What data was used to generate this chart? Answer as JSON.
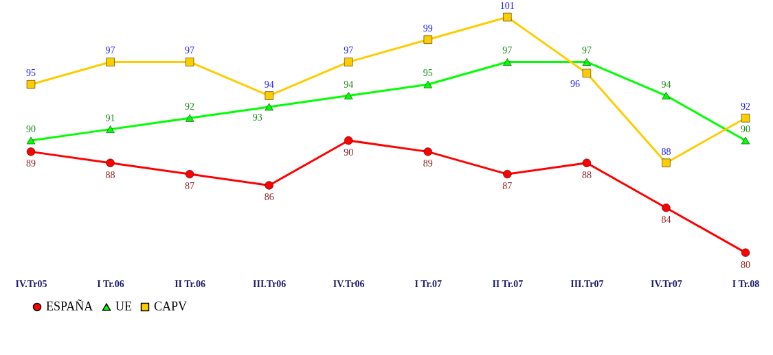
{
  "chart_data": {
    "type": "line",
    "categories": [
      "IV.Tr05",
      "I Tr.06",
      "II Tr.06",
      "III.Tr06",
      "IV.Tr06",
      "I Tr.07",
      "II Tr.07",
      "III.Tr07",
      "IV.Tr07",
      "I Tr.08"
    ],
    "series": [
      {
        "name": "ESPAÑA",
        "color": "#ff0000",
        "marker": "circle",
        "values": [
          89,
          88,
          87,
          86,
          90,
          89,
          87,
          88,
          84,
          80
        ]
      },
      {
        "name": "UE",
        "color": "#00ff00",
        "marker": "triangle",
        "values": [
          90,
          91,
          92,
          93,
          94,
          95,
          97,
          97,
          94,
          90
        ]
      },
      {
        "name": "CAPV",
        "color": "#ffcc00",
        "marker": "square",
        "values": [
          95,
          97,
          97,
          94,
          97,
          99,
          101,
          96,
          88,
          92
        ]
      }
    ],
    "data_labels": true,
    "legend": "bottom",
    "tick_labels": "x",
    "grid": false,
    "line_style": "solid"
  }
}
